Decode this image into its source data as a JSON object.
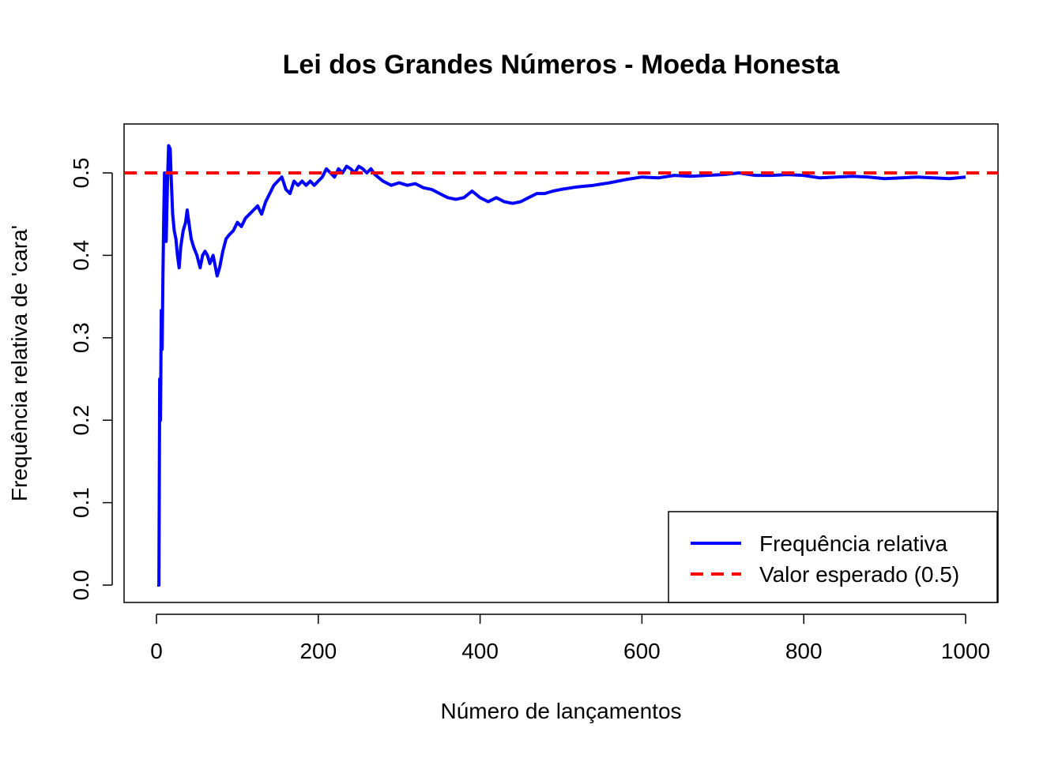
{
  "chart_data": {
    "type": "line",
    "title": "Lei dos Grandes Números - Moeda Honesta",
    "xlabel": "Número de lançamentos",
    "ylabel": "Frequência relativa de 'cara'",
    "xlim": [
      1,
      1000
    ],
    "ylim": [
      0.0,
      0.54
    ],
    "x_ticks": [
      "0",
      "200",
      "400",
      "600",
      "800",
      "1000"
    ],
    "y_ticks": [
      "0.0",
      "0.1",
      "0.2",
      "0.3",
      "0.4",
      "0.5"
    ],
    "grid": false,
    "legend_position": "bottom-right",
    "series": [
      {
        "name": "Frequência relativa",
        "color": "#0000FF",
        "line_style": "solid",
        "x": [
          1,
          2,
          3,
          4,
          5,
          6,
          7,
          8,
          9,
          10,
          11,
          12,
          13,
          14,
          15,
          16,
          17,
          18,
          19,
          20,
          22,
          24,
          26,
          28,
          30,
          33,
          36,
          38,
          40,
          43,
          46,
          50,
          54,
          57,
          60,
          63,
          66,
          70,
          73,
          75,
          78,
          82,
          86,
          90,
          95,
          100,
          105,
          110,
          115,
          120,
          125,
          130,
          135,
          140,
          145,
          150,
          155,
          160,
          165,
          170,
          175,
          180,
          185,
          190,
          195,
          200,
          205,
          210,
          215,
          220,
          225,
          230,
          235,
          240,
          245,
          250,
          255,
          260,
          265,
          270,
          280,
          290,
          300,
          310,
          320,
          330,
          340,
          350,
          360,
          370,
          380,
          390,
          400,
          410,
          420,
          430,
          440,
          450,
          460,
          470,
          480,
          490,
          500,
          520,
          540,
          560,
          580,
          600,
          620,
          640,
          660,
          680,
          700,
          720,
          740,
          760,
          780,
          800,
          820,
          840,
          860,
          880,
          900,
          920,
          940,
          960,
          980,
          1000
        ],
        "y": [
          0.0,
          0.0,
          0.0,
          0.25,
          0.2,
          0.333,
          0.286,
          0.375,
          0.444,
          0.5,
          0.455,
          0.417,
          0.462,
          0.5,
          0.533,
          0.531,
          0.529,
          0.5,
          0.474,
          0.45,
          0.43,
          0.42,
          0.4,
          0.385,
          0.41,
          0.43,
          0.44,
          0.455,
          0.44,
          0.42,
          0.41,
          0.4,
          0.385,
          0.4,
          0.405,
          0.4,
          0.39,
          0.4,
          0.385,
          0.375,
          0.385,
          0.405,
          0.42,
          0.425,
          0.43,
          0.44,
          0.435,
          0.445,
          0.45,
          0.455,
          0.46,
          0.45,
          0.465,
          0.475,
          0.485,
          0.49,
          0.495,
          0.48,
          0.475,
          0.49,
          0.485,
          0.49,
          0.485,
          0.49,
          0.485,
          0.49,
          0.495,
          0.505,
          0.5,
          0.495,
          0.505,
          0.5,
          0.508,
          0.505,
          0.5,
          0.508,
          0.505,
          0.5,
          0.505,
          0.498,
          0.49,
          0.485,
          0.488,
          0.485,
          0.487,
          0.482,
          0.48,
          0.475,
          0.47,
          0.468,
          0.47,
          0.478,
          0.47,
          0.465,
          0.47,
          0.465,
          0.463,
          0.465,
          0.47,
          0.475,
          0.475,
          0.478,
          0.48,
          0.483,
          0.485,
          0.488,
          0.492,
          0.495,
          0.494,
          0.497,
          0.496,
          0.497,
          0.498,
          0.5,
          0.497,
          0.497,
          0.498,
          0.497,
          0.494,
          0.495,
          0.496,
          0.495,
          0.493,
          0.494,
          0.495,
          0.494,
          0.493,
          0.495
        ]
      },
      {
        "name": "Valor esperado (0.5)",
        "color": "#FF0000",
        "line_style": "dashed",
        "y_constant": 0.5
      }
    ]
  }
}
